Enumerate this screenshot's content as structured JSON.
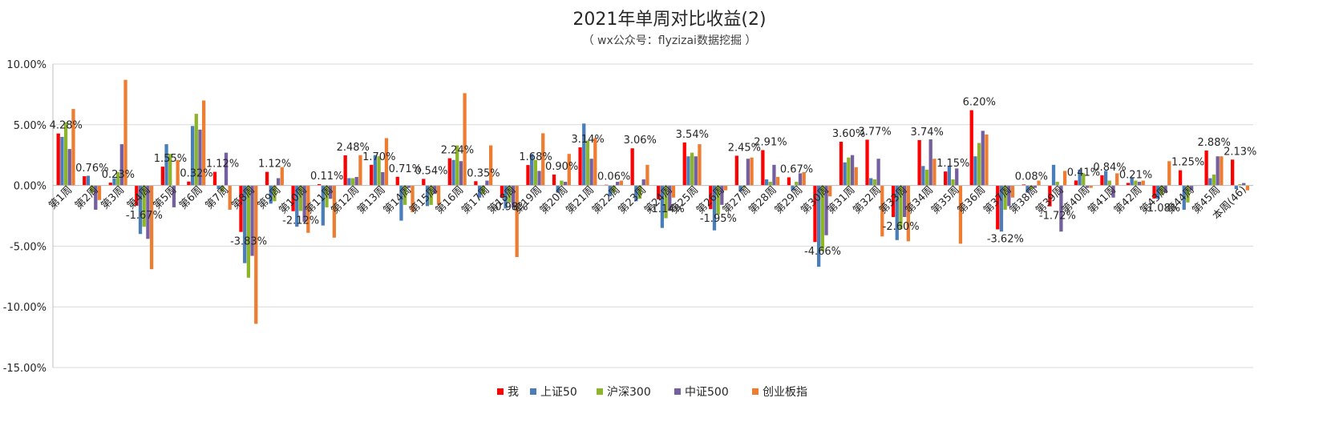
{
  "chart_data": {
    "type": "bar",
    "title": "2021年单周对比收益(2)",
    "subtitle": "（ wx公众号：flyzizai数据挖掘 ）",
    "ylim": [
      -15,
      10
    ],
    "yticks": [
      10,
      5,
      0,
      -5,
      -10,
      -15
    ],
    "ytick_labels": [
      "10.00%",
      "5.00%",
      "0.00%",
      "-5.00%",
      "-10.00%",
      "-15.00%"
    ],
    "grid": true,
    "legend_position": "bottom",
    "categories": [
      "第1周",
      "第2周",
      "第3周",
      "第4周",
      "第5周",
      "第6周",
      "第7周",
      "第8周",
      "第9周",
      "第10周",
      "第11周",
      "第12周",
      "第13周",
      "第14周",
      "第15周",
      "第16周",
      "第17周",
      "第18周",
      "第19周",
      "第20周",
      "第21周",
      "第22周",
      "第23周",
      "第24周",
      "第25周",
      "第26周",
      "第27周",
      "第28周",
      "第29周",
      "第30周",
      "第31周",
      "第32周",
      "第33周",
      "第34周",
      "第35周",
      "第36周",
      "第37周",
      "第38周",
      "第39周",
      "第40周",
      "第41周",
      "第42周",
      "第43周",
      "第44周",
      "第45周",
      "本周(46)"
    ],
    "series": [
      {
        "name": "我",
        "color": "#ff0000",
        "values": [
          4.28,
          0.76,
          0.23,
          -1.67,
          1.55,
          0.32,
          1.12,
          -3.83,
          1.12,
          -2.12,
          0.11,
          2.48,
          1.7,
          0.71,
          0.54,
          2.24,
          0.35,
          -0.98,
          1.68,
          0.9,
          3.14,
          0.06,
          3.06,
          -1.14,
          3.54,
          -1.95,
          2.45,
          2.91,
          0.67,
          -4.66,
          3.6,
          3.77,
          -2.6,
          3.74,
          1.15,
          6.2,
          -3.62,
          0.08,
          -1.72,
          0.41,
          0.84,
          0.21,
          -1.08,
          1.25,
          2.88,
          2.13
        ]
      },
      {
        "name": "上证50",
        "color": "#4a7ebb",
        "values": [
          4.0,
          0.8,
          0.6,
          -4.0,
          3.4,
          4.9,
          -0.3,
          -6.4,
          -1.5,
          -3.4,
          -3.3,
          0.6,
          2.5,
          -2.9,
          -1.7,
          2.1,
          -1.0,
          -1.9,
          2.6,
          -0.6,
          5.1,
          -0.9,
          -1.3,
          -3.5,
          2.4,
          -3.7,
          -0.5,
          0.5,
          -0.4,
          -6.7,
          1.9,
          0.6,
          -4.5,
          1.6,
          1.6,
          2.4,
          -3.8,
          -0.6,
          1.7,
          1.3,
          1.2,
          0.6,
          -1.1,
          -2.0,
          0.6,
          -0.3
        ]
      },
      {
        "name": "沪深300",
        "color": "#8db52a",
        "values": [
          5.2,
          -0.6,
          1.1,
          -3.4,
          2.6,
          5.9,
          -0.5,
          -7.6,
          -1.3,
          -2.1,
          -1.8,
          0.6,
          2.4,
          -1.6,
          -1.6,
          3.3,
          -0.7,
          -1.4,
          2.1,
          0.4,
          3.7,
          -0.6,
          -1.1,
          -2.7,
          2.7,
          -2.4,
          -0.2,
          0.3,
          0.3,
          -5.4,
          2.3,
          0.5,
          -3.6,
          1.3,
          0.5,
          3.5,
          -2.0,
          -0.3,
          0.3,
          1.0,
          0.4,
          0.4,
          -0.8,
          -1.4,
          0.9,
          0.1
        ]
      },
      {
        "name": "中证500",
        "color": "#7460a0",
        "values": [
          3.0,
          -2.0,
          3.4,
          -4.4,
          -1.8,
          4.6,
          2.7,
          -5.8,
          0.6,
          -3.0,
          -1.1,
          0.7,
          1.1,
          -0.2,
          -0.7,
          2.0,
          0.4,
          -1.8,
          1.2,
          0.3,
          2.2,
          0.3,
          0.5,
          -2.1,
          2.4,
          -1.6,
          2.2,
          1.7,
          1.0,
          -4.1,
          2.5,
          2.2,
          -2.6,
          3.8,
          1.4,
          4.5,
          -1.7,
          -0.2,
          -3.8,
          -0.2,
          -1.0,
          0.3,
          -0.6,
          -0.4,
          2.4,
          0.2
        ]
      },
      {
        "name": "创业板指",
        "color": "#ed7d31",
        "values": [
          6.3,
          -1.2,
          8.7,
          -6.9,
          2.1,
          7.0,
          -2.0,
          -11.4,
          1.5,
          -3.9,
          -4.3,
          2.5,
          3.9,
          -2.2,
          -1.6,
          7.6,
          3.3,
          -5.9,
          4.3,
          2.6,
          3.9,
          0.4,
          1.7,
          -1.0,
          3.4,
          -0.4,
          2.3,
          0.7,
          1.1,
          -0.9,
          1.5,
          -4.2,
          -4.6,
          2.2,
          -4.8,
          4.2,
          -1.0,
          0.4,
          1.2,
          -0.2,
          1.0,
          0.4,
          2.0,
          0.0,
          2.4,
          -0.4
        ]
      }
    ],
    "data_labels": [
      {
        "category": "第1周",
        "series": "我",
        "text": "4.28%"
      },
      {
        "category": "第2周",
        "series": "我",
        "text": "0.76%"
      },
      {
        "category": "第3周",
        "series": "我",
        "text": "0.23%"
      },
      {
        "category": "第4周",
        "series": "我",
        "text": "-1.67%"
      },
      {
        "category": "第5周",
        "series": "我",
        "text": "1.55%"
      },
      {
        "category": "第6周",
        "series": "我",
        "text": "0.32%"
      },
      {
        "category": "第7周",
        "series": "我",
        "text": "1.12%"
      },
      {
        "category": "第8周",
        "series": "我",
        "text": "-3.83%"
      },
      {
        "category": "第9周",
        "series": "我",
        "text": "1.12%"
      },
      {
        "category": "第10周",
        "series": "我",
        "text": "-2.12%"
      },
      {
        "category": "第11周",
        "series": "我",
        "text": "0.11%"
      },
      {
        "category": "第12周",
        "series": "我",
        "text": "2.48%"
      },
      {
        "category": "第13周",
        "series": "我",
        "text": "1.70%"
      },
      {
        "category": "第14周",
        "series": "我",
        "text": "0.71%"
      },
      {
        "category": "第15周",
        "series": "我",
        "text": "0.54%"
      },
      {
        "category": "第16周",
        "series": "我",
        "text": "2.24%"
      },
      {
        "category": "第17周",
        "series": "我",
        "text": "0.35%"
      },
      {
        "category": "第18周",
        "series": "我",
        "text": "-0.98%"
      },
      {
        "category": "第19周",
        "series": "我",
        "text": "1.68%"
      },
      {
        "category": "第20周",
        "series": "我",
        "text": "0.90%"
      },
      {
        "category": "第21周",
        "series": "我",
        "text": "3.14%"
      },
      {
        "category": "第22周",
        "series": "我",
        "text": "0.06%"
      },
      {
        "category": "第23周",
        "series": "我",
        "text": "3.06%"
      },
      {
        "category": "第24周",
        "series": "我",
        "text": "-1.14%"
      },
      {
        "category": "第25周",
        "series": "我",
        "text": "3.54%"
      },
      {
        "category": "第26周",
        "series": "我",
        "text": "-1.95%"
      },
      {
        "category": "第27周",
        "series": "我",
        "text": "2.45%"
      },
      {
        "category": "第28周",
        "series": "我",
        "text": "2.91%"
      },
      {
        "category": "第29周",
        "series": "我",
        "text": "0.67%"
      },
      {
        "category": "第30周",
        "series": "我",
        "text": "-4.66%"
      },
      {
        "category": "第31周",
        "series": "我",
        "text": "3.60%"
      },
      {
        "category": "第32周",
        "series": "我",
        "text": "3.77%"
      },
      {
        "category": "第33周",
        "series": "我",
        "text": "-2.60%"
      },
      {
        "category": "第34周",
        "series": "我",
        "text": "3.74%"
      },
      {
        "category": "第35周",
        "series": "我",
        "text": "1.15%"
      },
      {
        "category": "第36周",
        "series": "我",
        "text": "6.20%"
      },
      {
        "category": "第37周",
        "series": "我",
        "text": "-3.62%"
      },
      {
        "category": "第38周",
        "series": "我",
        "text": "0.08%"
      },
      {
        "category": "第39周",
        "series": "我",
        "text": "-1.72%"
      },
      {
        "category": "第40周",
        "series": "我",
        "text": "0.41%"
      },
      {
        "category": "第41周",
        "series": "我",
        "text": "0.84%"
      },
      {
        "category": "第42周",
        "series": "我",
        "text": "0.21%"
      },
      {
        "category": "第43周",
        "series": "我",
        "text": "-1.08%"
      },
      {
        "category": "第44周",
        "series": "我",
        "text": "1.25%"
      },
      {
        "category": "第45周",
        "series": "我",
        "text": "2.88%"
      },
      {
        "category": "本周(46)",
        "series": "我",
        "text": "2.13%"
      }
    ]
  }
}
